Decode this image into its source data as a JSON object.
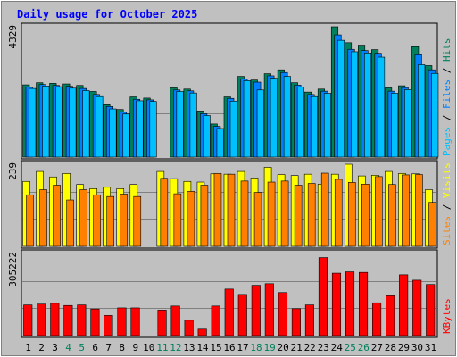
{
  "chart_data": {
    "type": "bar",
    "title": "Daily usage for October 2025",
    "colors": {
      "background": "#c0c0c0",
      "plot": "#c0c0c0",
      "title": "#0000ff",
      "hits": "#00805c",
      "files": "#0080ff",
      "pages": "#00c0ff",
      "visits": "#ffff00",
      "sites": "#ff8000",
      "kbytes": "#ff0000",
      "weekend_label": "#00805c",
      "weekday_label": "#000000",
      "grid": "#808080"
    },
    "legend": {
      "top_words": [
        "Pages",
        "Files",
        "Hits"
      ],
      "middle_words": [
        "Sites",
        "Visits"
      ],
      "bottom_words": [
        "KBytes"
      ],
      "separator": "/"
    },
    "days": [
      "1",
      "2",
      "3",
      "4",
      "5",
      "6",
      "7",
      "8",
      "9",
      "10",
      "11",
      "12",
      "13",
      "14",
      "15",
      "16",
      "17",
      "18",
      "19",
      "20",
      "21",
      "22",
      "23",
      "24",
      "25",
      "26",
      "27",
      "28",
      "29",
      "30",
      "31"
    ],
    "weekend_days": [
      "4",
      "5",
      "11",
      "12",
      "18",
      "19",
      "25",
      "26"
    ],
    "panels": [
      {
        "id": "hits_files_pages",
        "ymax_label": "4329",
        "ylim": [
          0,
          4329
        ],
        "series": [
          {
            "name": "Hits",
            "values": [
              2400,
              2470,
              2450,
              2430,
              2380,
              2180,
              1740,
              1580,
              2000,
              1960,
              null,
              2300,
              2260,
              1530,
              1100,
              2000,
              2680,
              2560,
              2770,
              2900,
              2470,
              2160,
              2260,
              4329,
              3800,
              3720,
              3570,
              2300,
              2370,
              3670,
              3040
            ]
          },
          {
            "name": "Files",
            "values": [
              2330,
              2410,
              2380,
              2350,
              2280,
              2080,
              1680,
              1490,
              1920,
              1900,
              null,
              2230,
              2200,
              1440,
              1020,
              1950,
              2600,
              2490,
              2700,
              2810,
              2390,
              2080,
              2190,
              4060,
              3580,
              3540,
              3450,
              2190,
              2310,
              3400,
              2900
            ]
          },
          {
            "name": "Pages",
            "values": [
              2280,
              2360,
              2340,
              2290,
              2210,
              2010,
              1600,
              1430,
              1870,
              1850,
              null,
              2180,
              2130,
              1380,
              950,
              1860,
              2540,
              2230,
              2620,
              2680,
              2330,
              2010,
              2120,
              3880,
              3500,
              3460,
              3320,
              2120,
              2240,
              3070,
              2780
            ]
          }
        ]
      },
      {
        "id": "visits_sites",
        "ymax_label": "239",
        "ylim": [
          0,
          239
        ],
        "series": [
          {
            "name": "Visits",
            "values": [
              189,
              218,
              202,
              212,
              180,
              168,
              172,
              168,
              180,
              null,
              218,
              197,
              189,
              187,
              211,
              210,
              218,
              199,
              230,
              209,
              206,
              210,
              181,
              210,
              239,
              205,
              207,
              218,
              212,
              211,
              165
            ]
          },
          {
            "name": "Sites",
            "values": [
              150,
              165,
              178,
              135,
              165,
              150,
              145,
              152,
              145,
              null,
              198,
              153,
              160,
              178,
              212,
              210,
              190,
              157,
              187,
              190,
              178,
              183,
              213,
              195,
              186,
              181,
              203,
              180,
              208,
              209,
              128
            ]
          }
        ]
      },
      {
        "id": "kbytes",
        "ymax_label": "305222",
        "ylim": [
          0,
          305222
        ],
        "series": [
          {
            "name": "KBytes",
            "values": [
              114000,
              117000,
              120000,
              112000,
              114000,
              99000,
              75000,
              103000,
              103000,
              null,
              95000,
              110000,
              57000,
              24000,
              110000,
              173000,
              153000,
              187000,
              193000,
              160000,
              100000,
              114000,
              290000,
              232000,
              237000,
              235000,
              122000,
              148000,
              226000,
              206000,
              190000
            ]
          }
        ]
      }
    ]
  }
}
